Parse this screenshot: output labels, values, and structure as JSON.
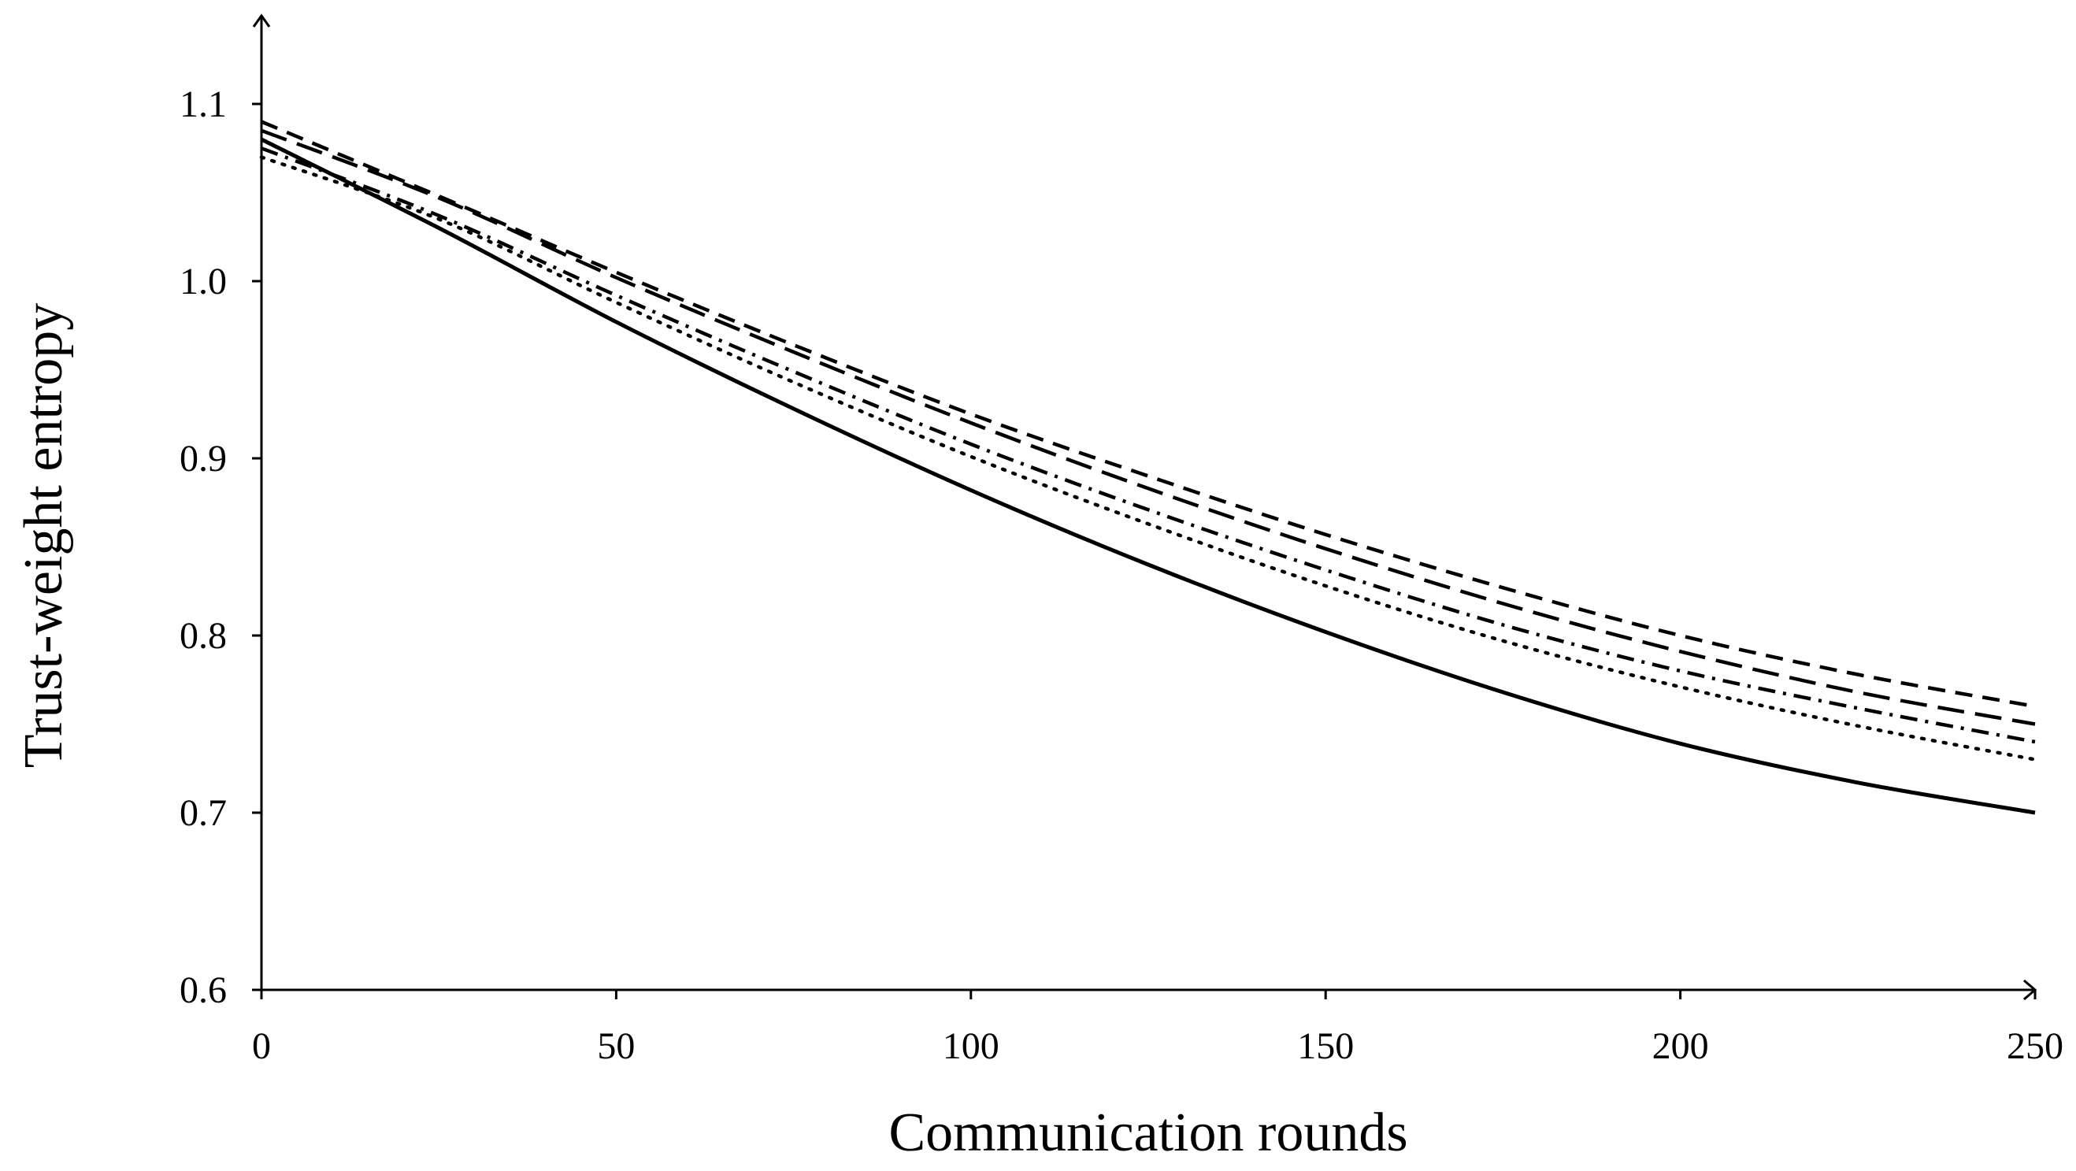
{
  "chart_data": {
    "type": "line",
    "title": "",
    "xlabel": "Communication rounds",
    "ylabel": "Trust-weight entropy",
    "xlim": [
      0,
      250
    ],
    "ylim": [
      0.6,
      1.15
    ],
    "x_ticks": [
      0,
      50,
      100,
      150,
      200,
      250
    ],
    "y_ticks": [
      0.6,
      0.7,
      0.8,
      0.9,
      1.0,
      1.1
    ],
    "x_tick_labels": [
      "0",
      "50",
      "100",
      "150",
      "200",
      "250"
    ],
    "y_tick_labels": [
      "0.6",
      "0.7",
      "0.8",
      "0.9",
      "1.0",
      "1.1"
    ],
    "grid": false,
    "legend": "none",
    "x": [
      0,
      25,
      50,
      75,
      100,
      125,
      150,
      175,
      200,
      225,
      250
    ],
    "series": [
      {
        "style": "solid",
        "color": "#000000",
        "values": [
          1.08,
          1.03,
          0.977,
          0.928,
          0.882,
          0.84,
          0.802,
          0.768,
          0.739,
          0.717,
          0.7
        ]
      },
      {
        "style": "dotted",
        "color": "#000000",
        "values": [
          1.07,
          1.035,
          0.988,
          0.943,
          0.901,
          0.863,
          0.828,
          0.797,
          0.771,
          0.749,
          0.73
        ]
      },
      {
        "style": "dash-dot",
        "color": "#000000",
        "values": [
          1.075,
          1.037,
          0.992,
          0.949,
          0.908,
          0.871,
          0.837,
          0.806,
          0.78,
          0.759,
          0.74
        ]
      },
      {
        "style": "long-dash",
        "color": "#000000",
        "values": [
          1.085,
          1.047,
          1.002,
          0.96,
          0.92,
          0.883,
          0.849,
          0.818,
          0.791,
          0.768,
          0.75
        ]
      },
      {
        "style": "dashed",
        "color": "#000000",
        "values": [
          1.09,
          1.048,
          1.005,
          0.964,
          0.925,
          0.89,
          0.857,
          0.827,
          0.8,
          0.778,
          0.76
        ]
      }
    ]
  }
}
